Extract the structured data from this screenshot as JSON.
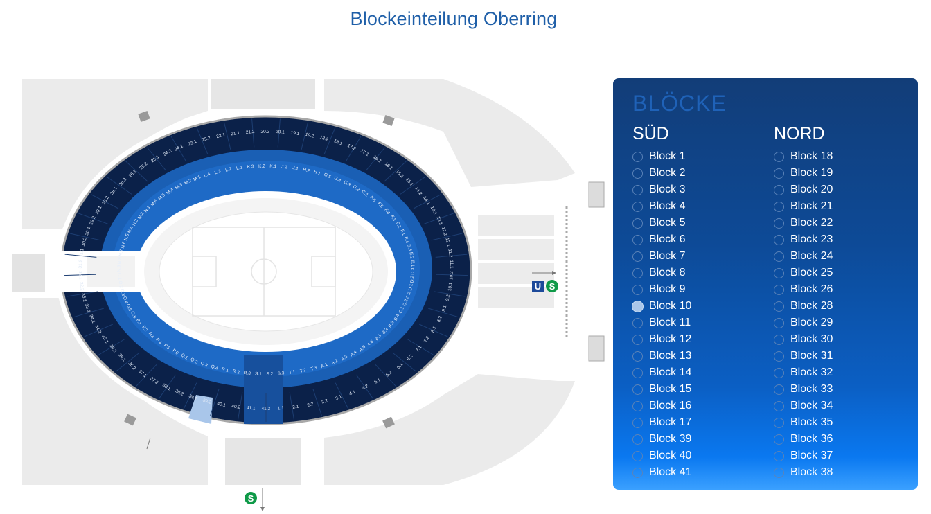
{
  "page": {
    "title": "Blockeinteilung Oberring"
  },
  "map": {
    "colors": {
      "outer": "#0b2149",
      "lower": "#1a5fb4",
      "lowerLight": "#2b73cc",
      "highlight": "#a9c6ea",
      "ground": "#ebebeb"
    },
    "transit": {
      "u": "U",
      "s": "S"
    },
    "upper_labels": [
      "24.1",
      "23.1",
      "23.2",
      "22.1",
      "21.1",
      "21.2",
      "20.2",
      "20.1",
      "19.1",
      "19.2",
      "18.2",
      "18.1",
      "17.2",
      "17.1",
      "16.2",
      "16.1",
      "15.2",
      "15.1",
      "14.2",
      "14.1",
      "13.2",
      "13.1",
      "12.2",
      "12.1",
      "11.2",
      "11.1",
      "10.2",
      "10.1",
      "9.2",
      "9.1",
      "8.2",
      "8.1",
      "7.2",
      "7.1",
      "6.2",
      "6.1",
      "5.2",
      "5.1",
      "4.2",
      "4.1",
      "3.1",
      "3.2",
      "2.2",
      "2.1",
      "1.1",
      "41.2",
      "41.1",
      "40.2",
      "40.1",
      "39.2",
      "39.1",
      "38.2",
      "38.1",
      "37.2",
      "37.1",
      "36.2",
      "36.1",
      "35.2",
      "35.1",
      "34.2",
      "34.1",
      "33.2",
      "33.1",
      "32.2",
      "32.1",
      "31.2",
      "31.1",
      "30.2",
      "30.1",
      "29.2",
      "29.1",
      "28.2",
      "28.1",
      "26.2",
      "26.1",
      "25.2",
      "25.1",
      "24.2"
    ],
    "lower_labels": [
      "M.1",
      "L.4",
      "L.3",
      "L.2",
      "L.1",
      "K.3",
      "K.2",
      "K.1",
      "J.2",
      "J.1",
      "H.2",
      "H.1",
      "G.5",
      "G.4",
      "G.3",
      "G.2",
      "G.1",
      "F.6",
      "F.5",
      "F.4",
      "F.3",
      "F.2",
      "F.1",
      "E.4",
      "E.3",
      "E.2",
      "E.1",
      "D.3",
      "D.2",
      "D.1",
      "C.3",
      "C.2",
      "C.1",
      "B.4",
      "B.3",
      "B.2",
      "B.1",
      "A.6",
      "A.5",
      "A.4",
      "A.3",
      "A.2",
      "A.1",
      "T.3",
      "T.2",
      "T.1",
      "S.3",
      "S.2",
      "S.1",
      "R.3",
      "R.2",
      "R.1",
      "Q.4",
      "Q.3",
      "Q.2",
      "Q.1",
      "P.6",
      "P.5",
      "P.4",
      "P.3",
      "P.2",
      "P.1",
      "O.6",
      "O.5",
      "O.4",
      "O.3",
      "O.2",
      "O.1",
      "N.9",
      "N.8",
      "N.7",
      "N.6",
      "N.5",
      "N.4",
      "N.3",
      "N.2",
      "N.1",
      "M.6",
      "M.5",
      "M.4",
      "M.3",
      "M.2"
    ]
  },
  "panel": {
    "title": "BLÖCKE",
    "sued": {
      "heading": "SÜD",
      "items": [
        "Block 1",
        "Block 2",
        "Block 3",
        "Block 4",
        "Block 5",
        "Block 6",
        "Block 7",
        "Block 8",
        "Block 9",
        "Block 10",
        "Block 11",
        "Block 12",
        "Block 13",
        "Block 14",
        "Block 15",
        "Block 16",
        "Block 17",
        "Block 39",
        "Block 40",
        "Block 41"
      ]
    },
    "nord": {
      "heading": "NORD",
      "items": [
        "Block 18",
        "Block 19",
        "Block 20",
        "Block 21",
        "Block 22",
        "Block 23",
        "Block 24",
        "Block 25",
        "Block 26",
        "Block 28",
        "Block 29",
        "Block 30",
        "Block 31",
        "Block 32",
        "Block 33",
        "Block 34",
        "Block 35",
        "Block 36",
        "Block 37",
        "Block 38"
      ]
    },
    "selected": "Block 10"
  }
}
